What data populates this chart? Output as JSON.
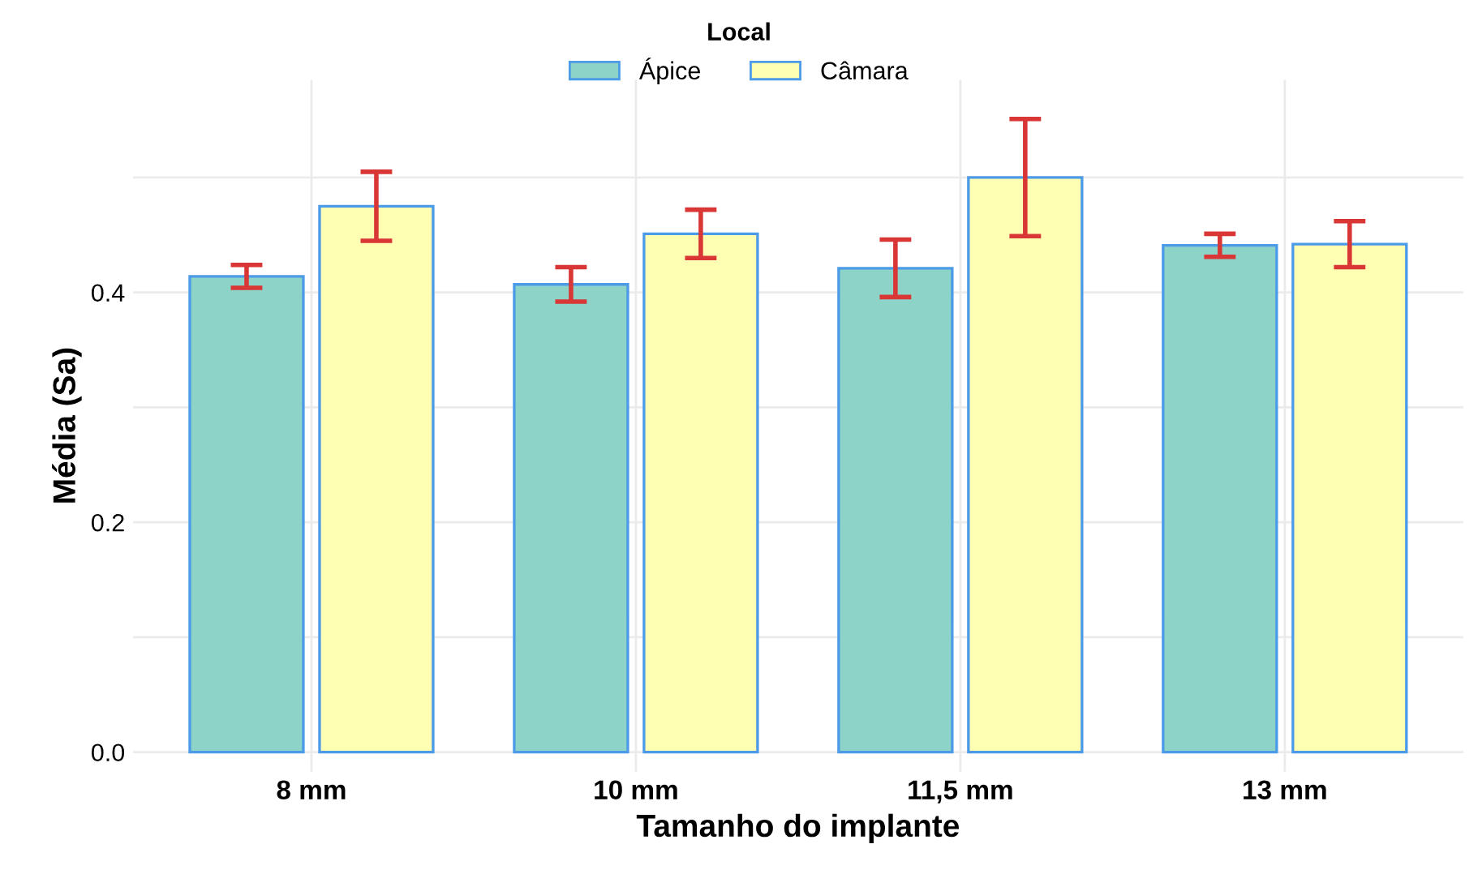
{
  "chart_data": {
    "type": "bar",
    "xlabel": "Tamanho do implante",
    "ylabel": "Média (Sa)",
    "legend_title": "Local",
    "categories": [
      "8 mm",
      "10 mm",
      "11,5 mm",
      "13 mm"
    ],
    "series": [
      {
        "name": "Ápice",
        "color": "#8dd3c7",
        "values": [
          0.414,
          0.407,
          0.421,
          0.441
        ],
        "errors": [
          0.01,
          0.015,
          0.025,
          0.01
        ]
      },
      {
        "name": "Câmara",
        "color": "#ffffb3",
        "values": [
          0.475,
          0.451,
          0.5,
          0.442
        ],
        "errors": [
          0.03,
          0.021,
          0.051,
          0.02
        ]
      }
    ],
    "ylim": [
      -0.017,
      0.585
    ],
    "yticks": [
      {
        "value": 0,
        "label": "0.0"
      },
      {
        "value": 0.1,
        "label": null
      },
      0.2,
      {
        "value": 0.3,
        "label": null
      },
      0.4,
      {
        "value": 0.5,
        "label": null
      }
    ],
    "grid": true,
    "legend": "top"
  }
}
